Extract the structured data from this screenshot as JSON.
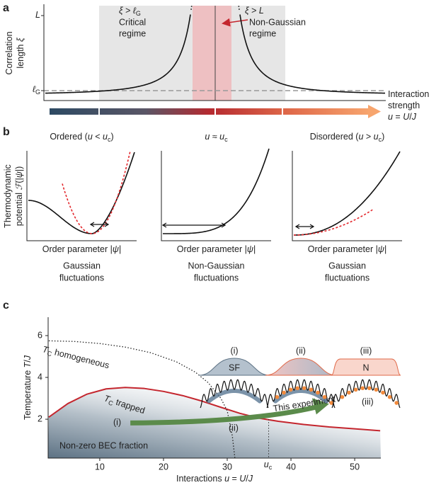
{
  "panel_a": {
    "label": "a",
    "y_label": [
      [
        {
          "t": "Correlation"
        }
      ],
      [
        {
          "t": "length "
        },
        {
          "t": "ξ",
          "i": true
        }
      ]
    ],
    "tick_top": [
      {
        "t": "L",
        "i": true
      }
    ],
    "tick_bottom": [
      {
        "t": "ℓ",
        "i": true
      },
      {
        "t": "G",
        "sub": true
      }
    ],
    "critical": {
      "condition": [
        {
          "t": "ξ",
          "i": true
        },
        {
          "t": " > "
        },
        {
          "t": "ℓ",
          "i": true
        },
        {
          "t": "G",
          "sub": true
        }
      ],
      "lines": [
        "Critical",
        "regime"
      ]
    },
    "non_gaussian": {
      "condition": [
        {
          "t": "ξ",
          "i": true
        },
        {
          "t": " > "
        },
        {
          "t": "L",
          "i": true
        }
      ],
      "lines": [
        "Non-Gaussian",
        "regime"
      ]
    },
    "x_label": [
      [
        {
          "t": "Interaction"
        }
      ],
      [
        {
          "t": "strength"
        }
      ],
      [
        {
          "t": "u",
          "i": true
        },
        {
          "t": " = "
        },
        {
          "t": "U",
          "i": true
        },
        {
          "t": "/"
        },
        {
          "t": "J",
          "i": true
        }
      ]
    ]
  },
  "panel_b": {
    "label": "b",
    "y_label": [
      [
        {
          "t": "Thermodynamic"
        }
      ],
      [
        {
          "t": "potential "
        },
        {
          "t": "ℱ",
          "i": true
        },
        {
          "t": "(|"
        },
        {
          "t": "ψ",
          "i": true
        },
        {
          "t": "|)"
        }
      ]
    ],
    "plots": [
      {
        "title": [
          {
            "t": "Ordered ("
          },
          {
            "t": "u",
            "i": true
          },
          {
            "t": " < "
          },
          {
            "t": "u",
            "i": true
          },
          {
            "t": "c",
            "sub": true
          },
          {
            "t": ")"
          }
        ],
        "x_label": [
          {
            "t": "Order parameter |"
          },
          {
            "t": "ψ",
            "i": true
          },
          {
            "t": "|"
          }
        ],
        "caption": [
          "Gaussian",
          "fluctuations"
        ]
      },
      {
        "title": [
          {
            "t": "u",
            "i": true
          },
          {
            "t": " ≈ "
          },
          {
            "t": "u",
            "i": true
          },
          {
            "t": "c",
            "sub": true
          }
        ],
        "x_label": [
          {
            "t": "Order parameter |"
          },
          {
            "t": "ψ",
            "i": true
          },
          {
            "t": "|"
          }
        ],
        "caption": [
          "Non-Gaussian",
          "fluctuations"
        ]
      },
      {
        "title": [
          {
            "t": "Disordered ("
          },
          {
            "t": "u",
            "i": true
          },
          {
            "t": " > "
          },
          {
            "t": "u",
            "i": true
          },
          {
            "t": "c",
            "sub": true
          },
          {
            "t": ")"
          }
        ],
        "x_label": [
          {
            "t": "Order parameter |"
          },
          {
            "t": "ψ",
            "i": true
          },
          {
            "t": "|"
          }
        ],
        "caption": [
          "Gaussian",
          "fluctuations"
        ]
      }
    ]
  },
  "chart_data": {
    "type": "line",
    "label": "c",
    "x_label": [
      {
        "t": "Interactions "
      },
      {
        "t": "u",
        "i": true
      },
      {
        "t": " = "
      },
      {
        "t": "U",
        "i": true
      },
      {
        "t": "/"
      },
      {
        "t": "J",
        "i": true
      }
    ],
    "y_label": [
      {
        "t": "Temperature "
      },
      {
        "t": "T",
        "i": true
      },
      {
        "t": "/"
      },
      {
        "t": "J",
        "i": true
      }
    ],
    "xlim": [
      1.9,
      54.1
    ],
    "ylim": [
      0.14,
      6.88
    ],
    "xticks": [
      10,
      20,
      30,
      40,
      50
    ],
    "yticks": [
      2,
      4,
      6
    ],
    "series": [
      {
        "name": [
          {
            "t": "T",
            "i": true
          },
          {
            "t": "C",
            "sub": true
          },
          {
            "t": " trapped"
          }
        ],
        "color": "#c4262e",
        "style": "solid",
        "x": [
          2,
          5,
          8,
          11,
          14,
          17,
          20,
          23,
          26,
          29,
          32,
          35,
          38,
          42,
          46,
          50,
          54
        ],
        "values": [
          2.1,
          2.75,
          3.2,
          3.45,
          3.52,
          3.47,
          3.33,
          3.13,
          2.87,
          2.57,
          2.28,
          2.05,
          1.9,
          1.75,
          1.63,
          1.54,
          1.45
        ]
      },
      {
        "name": [
          {
            "t": "T",
            "i": true
          },
          {
            "t": "C",
            "sub": true
          },
          {
            "t": " homogeneous"
          }
        ],
        "color": "#222222",
        "style": "dotted",
        "x": [
          2,
          6,
          10,
          14,
          18,
          22,
          25,
          27,
          29,
          30,
          30.8,
          31.2
        ],
        "values": [
          5.75,
          5.72,
          5.62,
          5.45,
          5.18,
          4.75,
          4.25,
          3.75,
          3.0,
          2.4,
          1.2,
          0.14
        ]
      }
    ],
    "critical_point": {
      "value": 36.5,
      "label": [
        {
          "t": "u",
          "i": true
        },
        {
          "t": "c",
          "sub": true
        }
      ]
    },
    "region_label": "Non-zero BEC fraction",
    "experiment": {
      "label": "This experiment",
      "points": [
        "(i)",
        "(ii)",
        "(iii)"
      ]
    },
    "insets": [
      {
        "label": "(i)",
        "phase": "SF"
      },
      {
        "label": "(ii)"
      },
      {
        "label": "(iii)",
        "phase": "N"
      }
    ]
  }
}
